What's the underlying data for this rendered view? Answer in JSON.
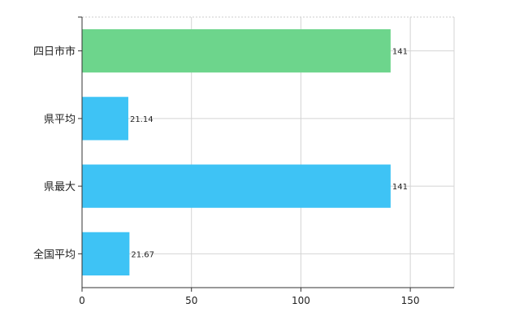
{
  "chart_data": {
    "type": "bar",
    "orientation": "horizontal",
    "categories": [
      "四日市市",
      "県平均",
      "県最大",
      "全国平均"
    ],
    "values": [
      141,
      21.14,
      141,
      21.67
    ],
    "value_labels": [
      "141",
      "21.14",
      "141",
      "21.67"
    ],
    "bar_colors": [
      "#6dd58c",
      "#3ec3f5",
      "#3ec3f5",
      "#3ec3f5"
    ],
    "xlim": [
      0,
      170
    ],
    "xticks": [
      0,
      50,
      100,
      150
    ],
    "xtick_labels": [
      "0",
      "50",
      "100",
      "150"
    ],
    "grid": true,
    "title": "",
    "xlabel": "",
    "ylabel": ""
  }
}
